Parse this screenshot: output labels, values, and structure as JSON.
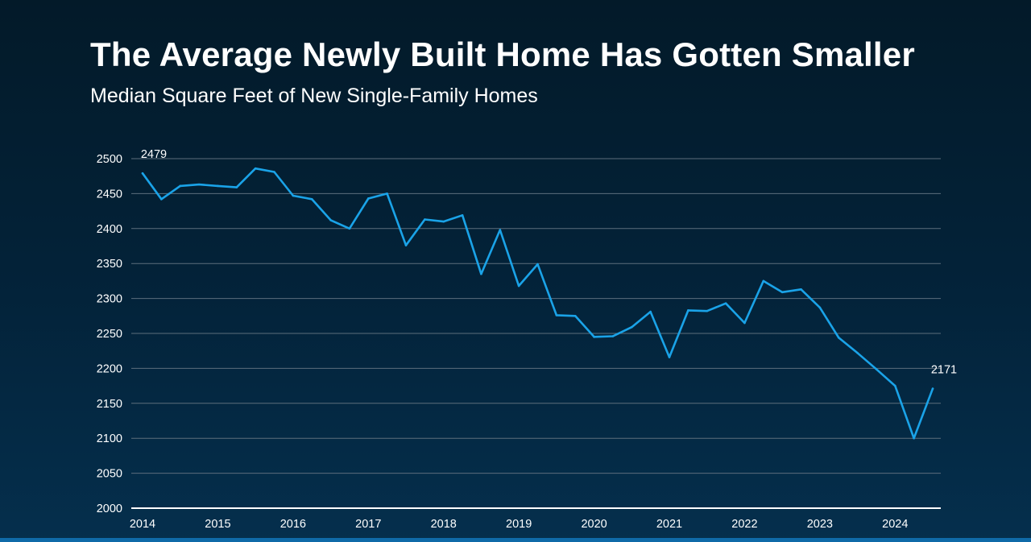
{
  "title": "The Average Newly Built Home Has Gotten Smaller",
  "subtitle": "Median Square Feet of New Single-Family Homes",
  "colors": {
    "line": "#1aa3e8",
    "grid": "#5c6e7c",
    "axis": "#ffffff",
    "accent_bar": "#0f6aa8"
  },
  "chart_data": {
    "type": "line",
    "title": "The Average Newly Built Home Has Gotten Smaller",
    "subtitle": "Median Square Feet of New Single-Family Homes",
    "xlabel": "",
    "ylabel": "",
    "xlim": [
      2014.0,
      2024.5
    ],
    "ylim": [
      2000,
      2500
    ],
    "x_ticks": [
      "2014",
      "2015",
      "2016",
      "2017",
      "2018",
      "2019",
      "2020",
      "2021",
      "2022",
      "2023",
      "2024"
    ],
    "y_ticks": [
      2000,
      2050,
      2100,
      2150,
      2200,
      2250,
      2300,
      2350,
      2400,
      2450,
      2500
    ],
    "grid": true,
    "legend": "none",
    "series": [
      {
        "x": [
          2014.0,
          2014.25,
          2014.5,
          2014.75,
          2015.0,
          2015.25,
          2015.5,
          2015.75,
          2016.0,
          2016.25,
          2016.5,
          2016.75,
          2017.0,
          2017.25,
          2017.5,
          2017.75,
          2018.0,
          2018.25,
          2018.5,
          2018.75,
          2019.0,
          2019.25,
          2019.5,
          2019.75,
          2020.0,
          2020.25,
          2020.5,
          2020.75,
          2021.0,
          2021.25,
          2021.5,
          2021.75,
          2022.0,
          2022.25,
          2022.5,
          2022.75,
          2023.0,
          2023.25,
          2023.5,
          2023.75,
          2024.0,
          2024.25,
          2024.5
        ],
        "values": [
          2479,
          2442,
          2461,
          2463,
          2461,
          2459,
          2486,
          2481,
          2447,
          2442,
          2412,
          2400,
          2443,
          2450,
          2376,
          2413,
          2410,
          2419,
          2335,
          2398,
          2318,
          2349,
          2276,
          2275,
          2245,
          2246,
          2259,
          2281,
          2216,
          2283,
          2282,
          2293,
          2265,
          2325,
          2309,
          2313,
          2287,
          2244,
          2222,
          2199,
          2175,
          2100,
          2171
        ]
      }
    ],
    "annotations": [
      {
        "label": "2479",
        "index": 0
      },
      {
        "label": "2171",
        "index": 42
      }
    ]
  }
}
